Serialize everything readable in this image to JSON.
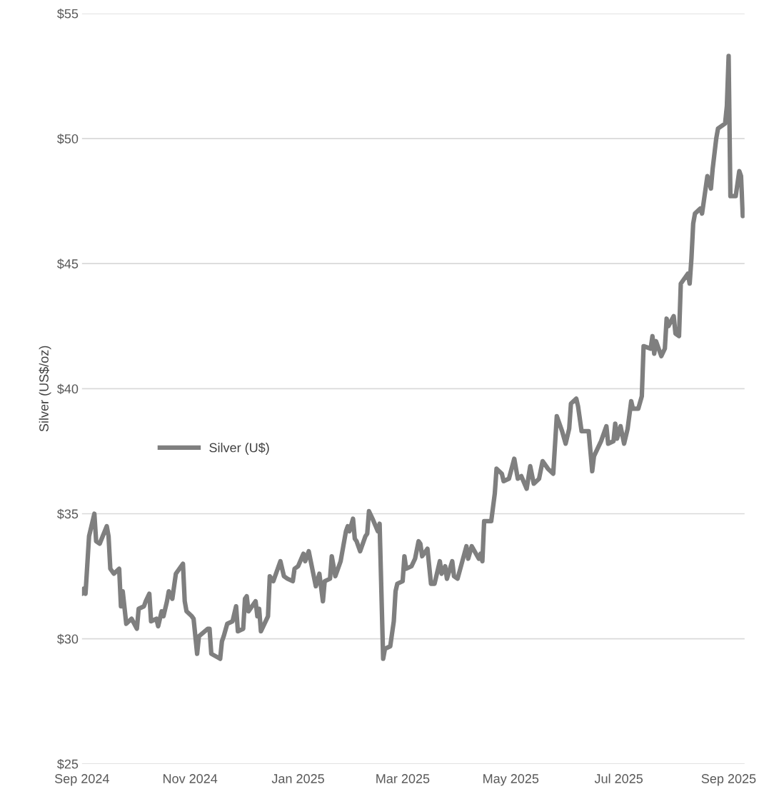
{
  "chart_data": {
    "type": "line",
    "ylabel": "Silver (US$/oz)",
    "x": [
      "2024-09-01",
      "2024-09-02",
      "2024-09-03",
      "2024-09-05",
      "2024-09-08",
      "2024-09-09",
      "2024-09-11",
      "2024-09-15",
      "2024-09-16",
      "2024-09-17",
      "2024-09-19",
      "2024-09-22",
      "2024-09-23",
      "2024-09-24",
      "2024-09-26",
      "2024-09-29",
      "2024-10-02",
      "2024-10-03",
      "2024-10-06",
      "2024-10-07",
      "2024-10-09",
      "2024-10-10",
      "2024-10-13",
      "2024-10-14",
      "2024-10-16",
      "2024-10-17",
      "2024-10-19",
      "2024-10-20",
      "2024-10-22",
      "2024-10-24",
      "2024-10-26",
      "2024-10-28",
      "2024-10-29",
      "2024-10-30",
      "2024-11-02",
      "2024-11-03",
      "2024-11-05",
      "2024-11-06",
      "2024-11-11",
      "2024-11-12",
      "2024-11-13",
      "2024-11-18",
      "2024-11-19",
      "2024-11-20",
      "2024-11-22",
      "2024-11-25",
      "2024-11-27",
      "2024-11-28",
      "2024-12-01",
      "2024-12-02",
      "2024-12-03",
      "2024-12-04",
      "2024-12-08",
      "2024-12-09",
      "2024-12-10",
      "2024-12-11",
      "2024-12-15",
      "2024-12-16",
      "2024-12-18",
      "2024-12-22",
      "2024-12-24",
      "2024-12-26",
      "2024-12-29",
      "2024-12-30",
      "2025-01-01",
      "2025-01-04",
      "2025-01-05",
      "2025-01-07",
      "2025-01-11",
      "2025-01-13",
      "2025-01-15",
      "2025-01-16",
      "2025-01-19",
      "2025-01-20",
      "2025-01-22",
      "2025-01-25",
      "2025-01-28",
      "2025-01-29",
      "2025-01-30",
      "2025-02-01",
      "2025-02-02",
      "2025-02-03",
      "2025-02-05",
      "2025-02-08",
      "2025-02-09",
      "2025-02-10",
      "2025-02-12",
      "2025-02-15",
      "2025-02-16",
      "2025-02-18",
      "2025-02-19",
      "2025-02-22",
      "2025-02-24",
      "2025-02-25",
      "2025-02-26",
      "2025-03-01",
      "2025-03-02",
      "2025-03-03",
      "2025-03-06",
      "2025-03-08",
      "2025-03-10",
      "2025-03-11",
      "2025-03-12",
      "2025-03-15",
      "2025-03-17",
      "2025-03-19",
      "2025-03-22",
      "2025-03-23",
      "2025-03-25",
      "2025-03-26",
      "2025-03-29",
      "2025-03-30",
      "2025-04-01",
      "2025-04-06",
      "2025-04-07",
      "2025-04-09",
      "2025-04-13",
      "2025-04-14",
      "2025-04-15",
      "2025-04-16",
      "2025-04-20",
      "2025-04-22",
      "2025-04-23",
      "2025-04-26",
      "2025-04-27",
      "2025-04-30",
      "2025-05-03",
      "2025-05-05",
      "2025-05-07",
      "2025-05-10",
      "2025-05-12",
      "2025-05-14",
      "2025-05-17",
      "2025-05-19",
      "2025-05-22",
      "2025-05-25",
      "2025-05-27",
      "2025-05-30",
      "2025-06-01",
      "2025-06-03",
      "2025-06-04",
      "2025-06-07",
      "2025-06-08",
      "2025-06-10",
      "2025-06-14",
      "2025-06-16",
      "2025-06-17",
      "2025-06-21",
      "2025-06-24",
      "2025-06-25",
      "2025-06-28",
      "2025-06-29",
      "2025-06-30",
      "2025-07-02",
      "2025-07-04",
      "2025-07-06",
      "2025-07-08",
      "2025-07-09",
      "2025-07-12",
      "2025-07-14",
      "2025-07-15",
      "2025-07-19",
      "2025-07-20",
      "2025-07-21",
      "2025-07-22",
      "2025-07-25",
      "2025-07-27",
      "2025-07-28",
      "2025-07-29",
      "2025-08-01",
      "2025-08-02",
      "2025-08-04",
      "2025-08-05",
      "2025-08-09",
      "2025-08-10",
      "2025-08-11",
      "2025-08-12",
      "2025-08-13",
      "2025-08-16",
      "2025-08-17",
      "2025-08-19",
      "2025-08-20",
      "2025-08-22",
      "2025-08-23",
      "2025-08-25",
      "2025-08-26",
      "2025-08-30",
      "2025-08-31",
      "2025-09-01",
      "2025-09-02",
      "2025-09-05",
      "2025-09-07",
      "2025-09-08",
      "2025-09-09"
    ],
    "series": [
      {
        "name": "Silver (U$)",
        "color": "#7f7f7f",
        "values": [
          31.8,
          32.0,
          31.8,
          34.1,
          35.0,
          33.9,
          33.8,
          34.5,
          34.1,
          32.8,
          32.6,
          32.8,
          31.3,
          31.9,
          30.6,
          30.8,
          30.4,
          31.2,
          31.3,
          31.5,
          31.8,
          30.7,
          30.8,
          30.5,
          31.1,
          30.9,
          31.5,
          31.9,
          31.6,
          32.6,
          32.8,
          33.0,
          31.5,
          31.1,
          30.9,
          30.8,
          29.4,
          30.1,
          30.4,
          30.4,
          29.4,
          29.2,
          29.9,
          30.1,
          30.6,
          30.7,
          31.3,
          30.3,
          30.4,
          31.6,
          31.7,
          31.1,
          31.5,
          30.9,
          31.2,
          30.3,
          30.9,
          32.5,
          32.3,
          33.1,
          32.5,
          32.4,
          32.3,
          32.8,
          32.9,
          33.4,
          33.1,
          33.5,
          32.1,
          32.6,
          31.5,
          32.3,
          32.4,
          33.3,
          32.5,
          33.1,
          34.3,
          34.5,
          34.3,
          34.8,
          34.0,
          33.9,
          33.5,
          34.1,
          34.2,
          35.1,
          34.8,
          34.3,
          34.6,
          29.2,
          29.6,
          29.7,
          30.7,
          31.9,
          32.2,
          32.3,
          33.3,
          32.8,
          32.9,
          33.2,
          33.9,
          33.8,
          33.3,
          33.6,
          32.2,
          32.2,
          33.1,
          32.6,
          32.9,
          32.4,
          33.1,
          32.5,
          32.4,
          33.7,
          33.2,
          33.7,
          33.2,
          33.4,
          33.1,
          34.7,
          34.7,
          35.8,
          36.8,
          36.6,
          36.3,
          36.4,
          37.2,
          36.4,
          36.5,
          36.0,
          36.9,
          36.2,
          36.4,
          37.1,
          36.8,
          36.6,
          38.9,
          38.3,
          37.8,
          38.4,
          39.4,
          39.6,
          39.3,
          38.3,
          38.3,
          36.7,
          37.3,
          37.9,
          38.5,
          37.8,
          37.9,
          38.6,
          38.0,
          38.5,
          37.8,
          38.4,
          39.5,
          39.2,
          39.2,
          39.7,
          41.7,
          41.6,
          42.1,
          41.4,
          41.9,
          41.3,
          41.6,
          42.8,
          42.5,
          42.9,
          42.2,
          42.1,
          44.2,
          44.6,
          44.2,
          45.2,
          46.6,
          47.0,
          47.2,
          47.0,
          48.0,
          48.5,
          48.0,
          48.8,
          50.0,
          50.4,
          50.6,
          51.3,
          53.3,
          47.7,
          47.7,
          48.7,
          48.5,
          46.9
        ]
      }
    ],
    "xlim": [
      "2024-09-01",
      "2025-09-10"
    ],
    "xticks": [
      {
        "value": "2024-09-01",
        "label": "Sep 2024"
      },
      {
        "value": "2024-11-01",
        "label": "Nov 2024"
      },
      {
        "value": "2025-01-01",
        "label": "Jan 2025"
      },
      {
        "value": "2025-03-01",
        "label": "Mar 2025"
      },
      {
        "value": "2025-05-01",
        "label": "May 2025"
      },
      {
        "value": "2025-07-01",
        "label": "Jul 2025"
      },
      {
        "value": "2025-09-01",
        "label": "Sep 2025"
      }
    ],
    "ylim": [
      25,
      55
    ],
    "yticks": [
      {
        "value": 25,
        "label": "$25"
      },
      {
        "value": 30,
        "label": "$30"
      },
      {
        "value": 35,
        "label": "$35"
      },
      {
        "value": 40,
        "label": "$40"
      },
      {
        "value": 45,
        "label": "$45"
      },
      {
        "value": 50,
        "label": "$50"
      },
      {
        "value": 55,
        "label": "$55"
      }
    ],
    "grid": "y",
    "legend": "left",
    "marker": "none",
    "line_style": "solid"
  }
}
